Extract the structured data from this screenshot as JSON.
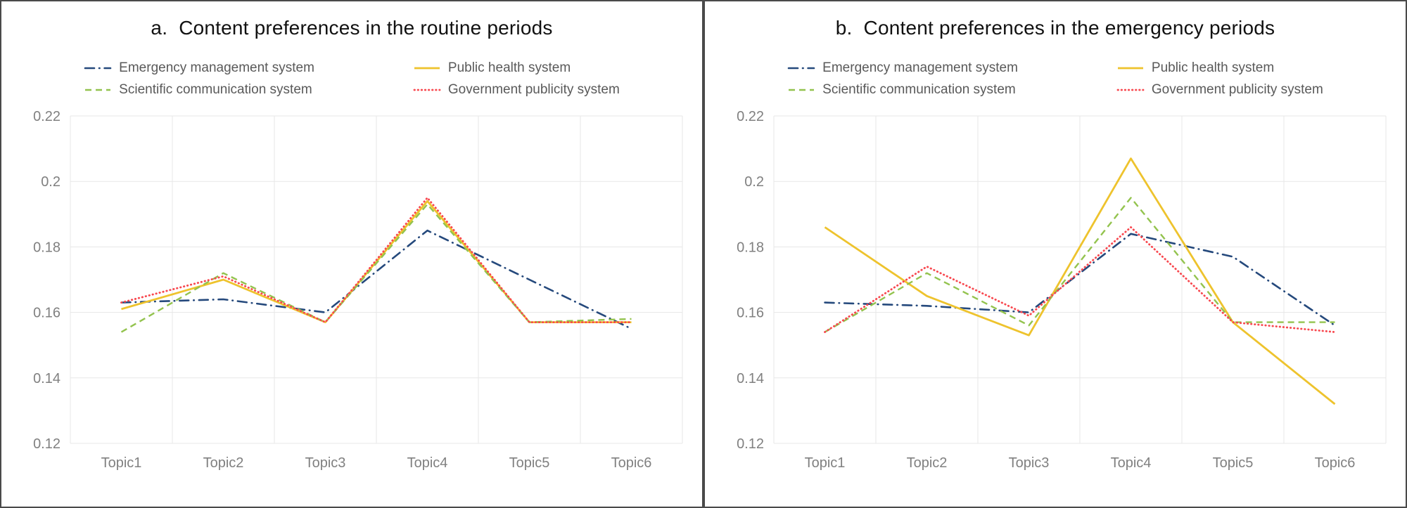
{
  "frame": {
    "border_color": "#4a4a4a",
    "background_color": "#ffffff",
    "gridline_color": "#e7e7e7",
    "tick_label_color": "#808080",
    "legend_text_color": "#595959",
    "title_color": "#111111"
  },
  "chart_data": [
    {
      "type": "line",
      "panel_label": "a.",
      "title": "Content preferences in the routine periods",
      "categories": [
        "Topic1",
        "Topic2",
        "Topic3",
        "Topic4",
        "Topic5",
        "Topic6"
      ],
      "ylim": [
        0.12,
        0.22
      ],
      "ytick_labels": [
        "0.22",
        "0.2",
        "0.18",
        "0.16",
        "0.14",
        "0.12"
      ],
      "grid": "on",
      "legend_position": "top",
      "series": [
        {
          "name": "Emergency management system",
          "color": "#25497c",
          "line_style": "dashdot",
          "values": [
            0.163,
            0.164,
            0.16,
            0.185,
            0.17,
            0.155
          ]
        },
        {
          "name": "Public health system",
          "color": "#eec32d",
          "line_style": "solid",
          "values": [
            0.161,
            0.17,
            0.157,
            0.194,
            0.157,
            0.157
          ]
        },
        {
          "name": "Scientific communication system",
          "color": "#93c34e",
          "line_style": "dashed",
          "values": [
            0.154,
            0.172,
            0.157,
            0.193,
            0.157,
            0.158
          ]
        },
        {
          "name": "Government publicity system",
          "color": "#f8484f",
          "line_style": "dotted",
          "values": [
            0.163,
            0.171,
            0.157,
            0.195,
            0.157,
            0.157
          ]
        }
      ]
    },
    {
      "type": "line",
      "panel_label": "b.",
      "title": "Content preferences in the emergency periods",
      "categories": [
        "Topic1",
        "Topic2",
        "Topic3",
        "Topic4",
        "Topic5",
        "Topic6"
      ],
      "ylim": [
        0.12,
        0.22
      ],
      "ytick_labels": [
        "0.22",
        "0.2",
        "0.18",
        "0.16",
        "0.14",
        "0.12"
      ],
      "grid": "on",
      "legend_position": "top",
      "series": [
        {
          "name": "Emergency management system",
          "color": "#25497c",
          "line_style": "dashdot",
          "values": [
            0.163,
            0.162,
            0.16,
            0.184,
            0.177,
            0.156
          ]
        },
        {
          "name": "Public health system",
          "color": "#eec32d",
          "line_style": "solid",
          "values": [
            0.186,
            0.165,
            0.153,
            0.207,
            0.157,
            0.132
          ]
        },
        {
          "name": "Scientific communication system",
          "color": "#93c34e",
          "line_style": "dashed",
          "values": [
            0.154,
            0.172,
            0.156,
            0.195,
            0.157,
            0.157
          ]
        },
        {
          "name": "Government publicity system",
          "color": "#f8484f",
          "line_style": "dotted",
          "values": [
            0.154,
            0.174,
            0.159,
            0.186,
            0.157,
            0.154
          ]
        }
      ]
    }
  ]
}
